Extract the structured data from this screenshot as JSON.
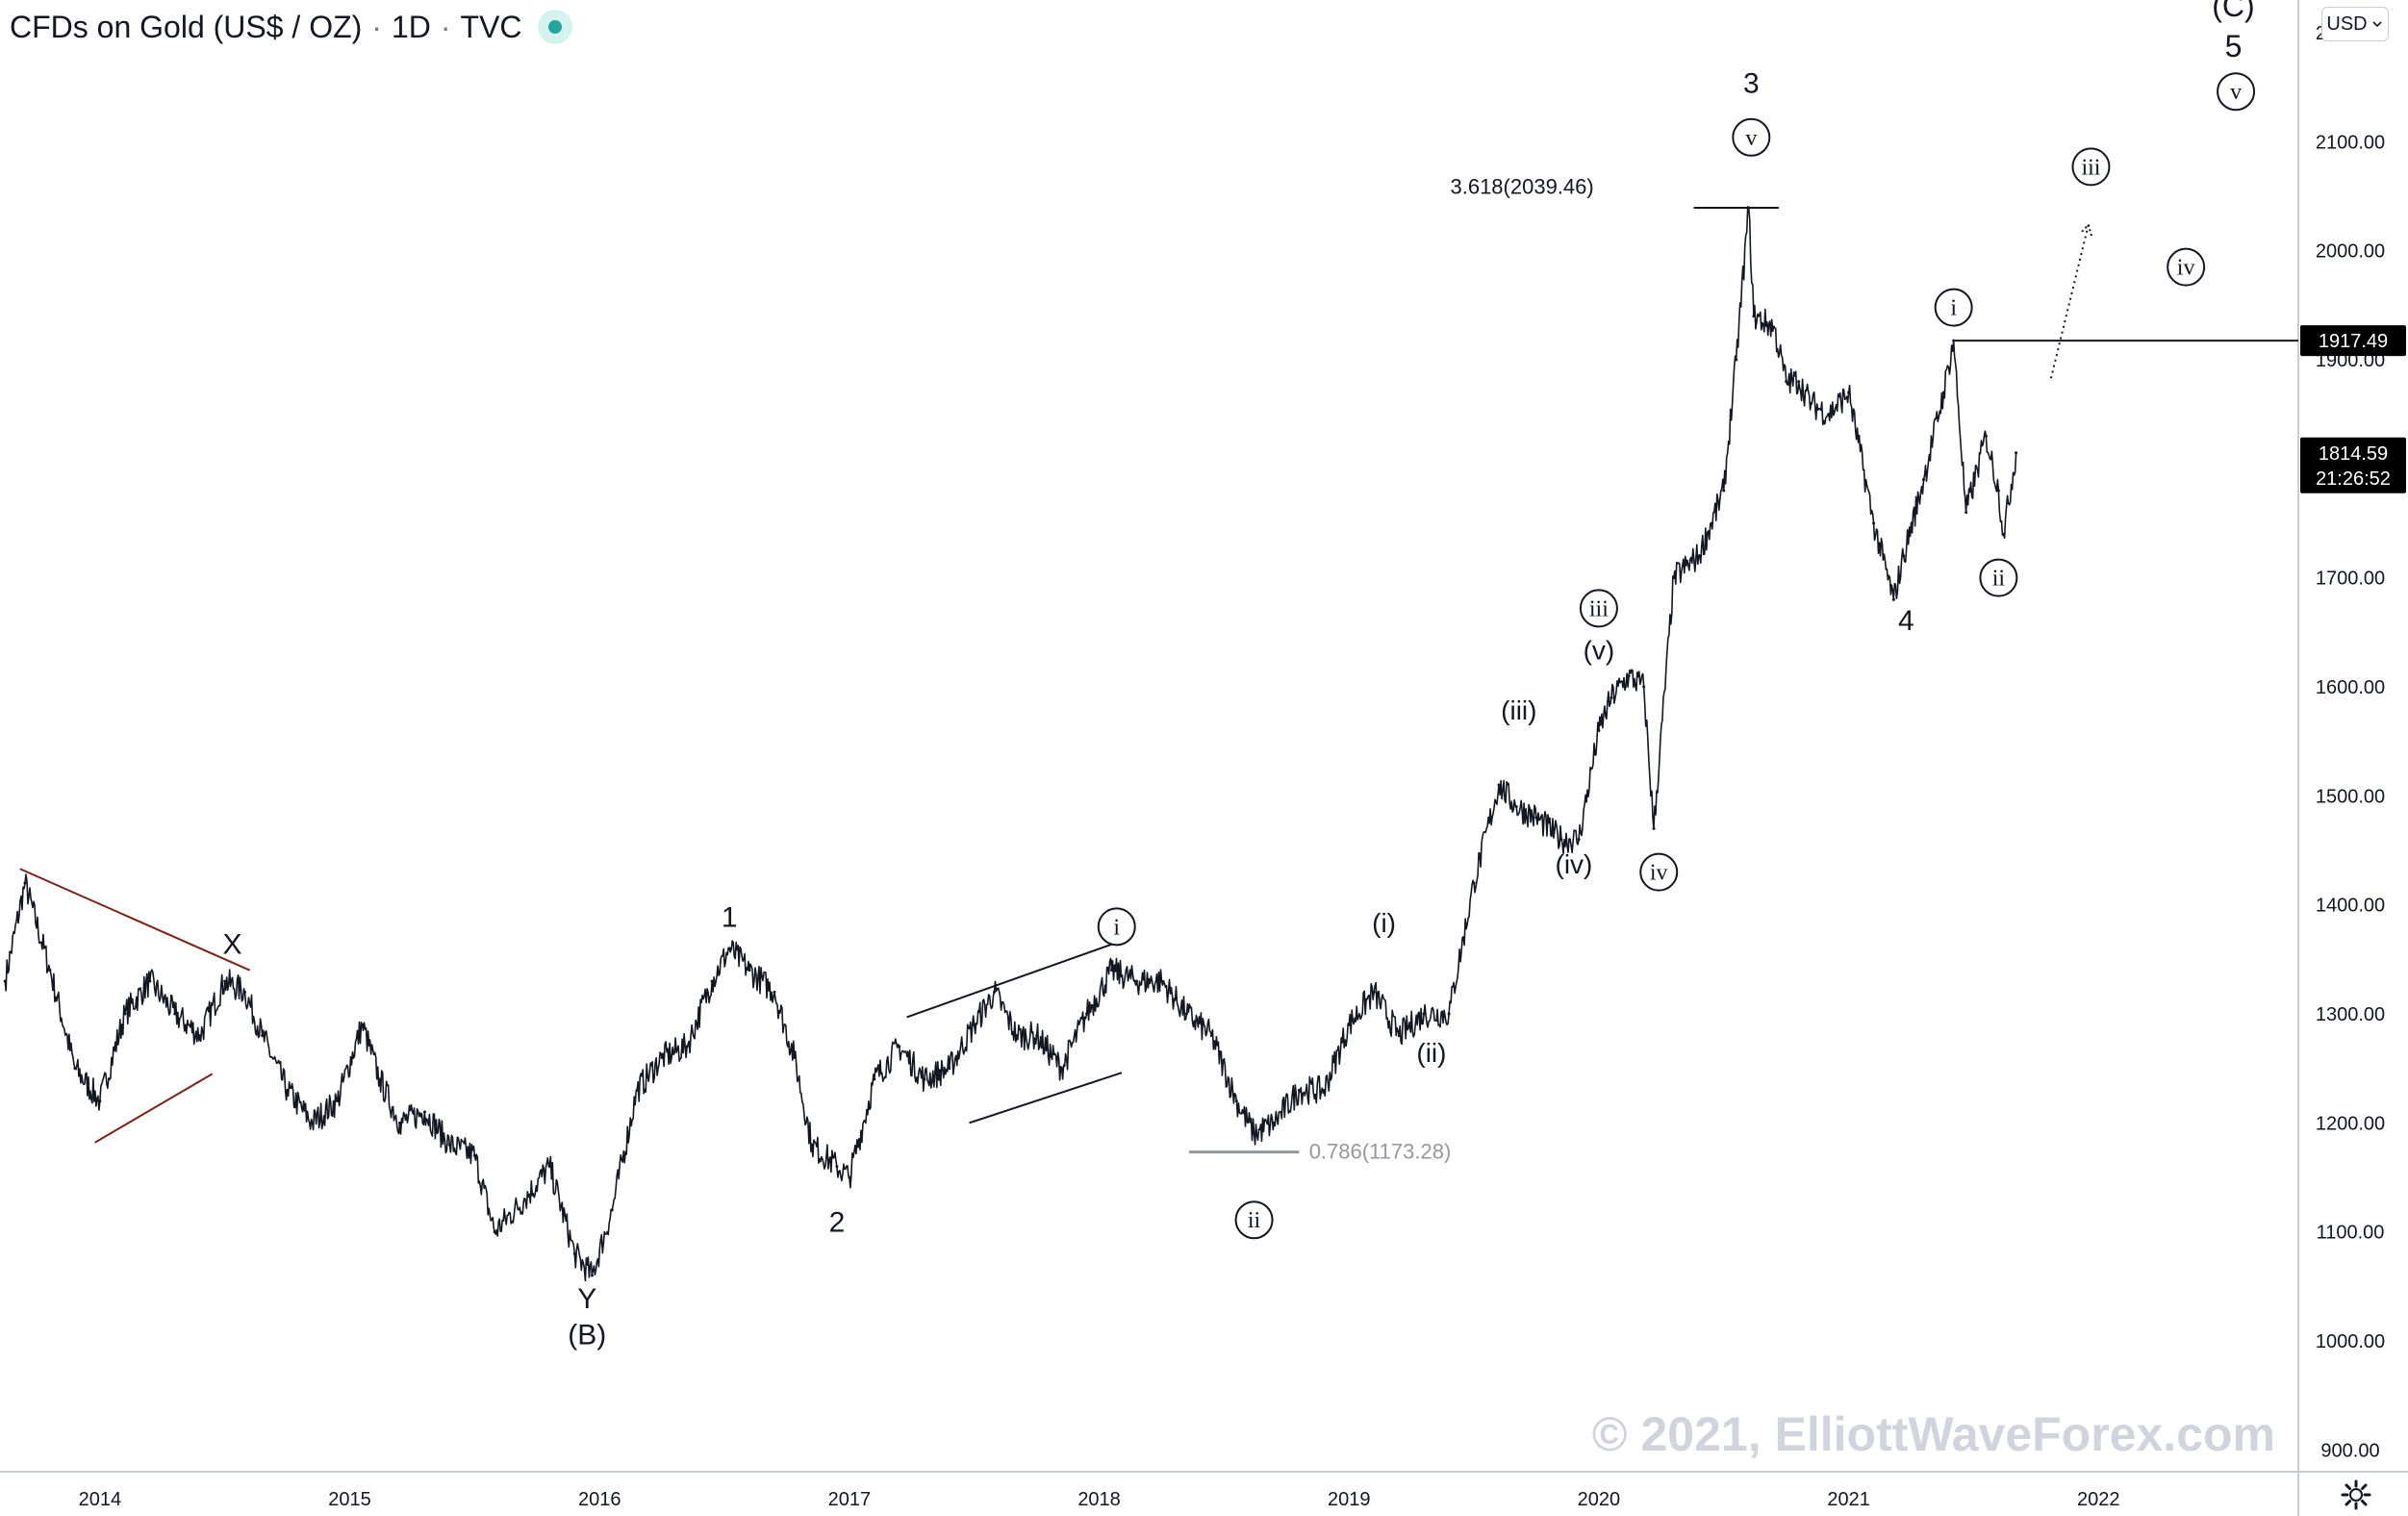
{
  "header": {
    "symbol": "CFDs on Gold (US$ / OZ)",
    "interval": "1D",
    "source": "TVC",
    "separator": "·"
  },
  "currency_button": {
    "label": "USD",
    "icon": "chevron-down-icon"
  },
  "watermark": "© 2021, ElliottWaveForex.com",
  "colors": {
    "price": "#131722",
    "triangle": "#7b2418",
    "fib_ret": "#9598a1",
    "axis_text": "#131722",
    "watermark": "#d1d4dc",
    "live_dot": "#26a69a",
    "tag_bg": "#000000"
  },
  "price_tags": [
    {
      "id": "level",
      "price": 1917.49,
      "lines": [
        "1917.49"
      ]
    },
    {
      "id": "last",
      "price": 1814.59,
      "lines": [
        "1814.59",
        "21:26:52"
      ]
    }
  ],
  "chart_data": {
    "type": "line",
    "title": "CFDs on Gold (US$ / OZ)",
    "x_axis": {
      "ticks": [
        "2014",
        "2015",
        "2016",
        "2017",
        "2018",
        "2019",
        "2020",
        "2021",
        "2022"
      ],
      "range": [
        2013.6,
        2022.8
      ]
    },
    "y_axis": {
      "ticks": [
        "900.00",
        "1000.00",
        "1100.00",
        "1200.00",
        "1300.00",
        "1400.00",
        "1500.00",
        "1600.00",
        "1700.00",
        "1800.00",
        "1900.00",
        "2000.00",
        "2100.00",
        "2200.00"
      ],
      "range": [
        880,
        2230
      ],
      "position": "right"
    },
    "grid": false,
    "series": [
      {
        "name": "",
        "x": [
          2013.62,
          2013.7,
          2013.8,
          2013.9,
          2014.0,
          2014.1,
          2014.2,
          2014.3,
          2014.4,
          2014.5,
          2014.58,
          2014.65,
          2014.75,
          2014.85,
          2014.95,
          2015.05,
          2015.12,
          2015.2,
          2015.3,
          2015.4,
          2015.5,
          2015.58,
          2015.7,
          2015.8,
          2015.9,
          2015.97,
          2016.05,
          2016.15,
          2016.25,
          2016.35,
          2016.45,
          2016.52,
          2016.6,
          2016.7,
          2016.78,
          2016.85,
          2016.95,
          2017.0,
          2017.1,
          2017.2,
          2017.3,
          2017.4,
          2017.5,
          2017.58,
          2017.67,
          2017.75,
          2017.85,
          2017.95,
          2018.05,
          2018.15,
          2018.25,
          2018.35,
          2018.45,
          2018.55,
          2018.62,
          2018.7,
          2018.8,
          2018.9,
          2019.0,
          2019.1,
          2019.2,
          2019.3,
          2019.4,
          2019.5,
          2019.6,
          2019.67,
          2019.75,
          2019.85,
          2019.92,
          2020.0,
          2020.05,
          2020.12,
          2020.18,
          2020.22,
          2020.3,
          2020.4,
          2020.5,
          2020.55,
          2020.6,
          2020.62,
          2020.7,
          2020.75,
          2020.8,
          2020.85,
          2020.92,
          2021.0,
          2021.1,
          2021.18,
          2021.22,
          2021.3,
          2021.38,
          2021.42,
          2021.47,
          2021.55,
          2021.6,
          2021.62,
          2021.67
        ],
        "y": [
          1330,
          1420,
          1340,
          1250,
          1220,
          1300,
          1330,
          1300,
          1280,
          1330,
          1320,
          1280,
          1230,
          1200,
          1220,
          1290,
          1240,
          1200,
          1210,
          1180,
          1170,
          1100,
          1130,
          1160,
          1080,
          1060,
          1120,
          1230,
          1260,
          1270,
          1330,
          1360,
          1340,
          1320,
          1260,
          1180,
          1160,
          1150,
          1240,
          1270,
          1240,
          1250,
          1290,
          1320,
          1280,
          1280,
          1250,
          1300,
          1340,
          1330,
          1330,
          1300,
          1280,
          1220,
          1190,
          1200,
          1230,
          1230,
          1290,
          1320,
          1280,
          1300,
          1300,
          1420,
          1510,
          1490,
          1480,
          1460,
          1460,
          1560,
          1590,
          1610,
          1600,
          1470,
          1700,
          1720,
          1780,
          1900,
          2039.46,
          1940,
          1930,
          1880,
          1880,
          1860,
          1850,
          1870,
          1750,
          1680,
          1720,
          1790,
          1870,
          1917.49,
          1760,
          1830,
          1780,
          1740,
          1814.59
        ]
      }
    ],
    "annotations": [
      {
        "text": "X",
        "x": 2014.53,
        "price": 1355,
        "size": 30
      },
      {
        "text": "1",
        "x": 2016.52,
        "price": 1380,
        "size": 30
      },
      {
        "text": "2",
        "x": 2016.95,
        "price": 1100,
        "size": 30
      },
      {
        "text": "Y",
        "x": 2015.95,
        "price": 1030,
        "size": 30
      },
      {
        "text": "(B)",
        "x": 2015.95,
        "price": 997,
        "size": 30
      },
      {
        "text": "(i)",
        "x": 2019.14,
        "price": 1375,
        "size": 28
      },
      {
        "text": "(ii)",
        "x": 2019.33,
        "price": 1256,
        "size": 28
      },
      {
        "text": "(iii)",
        "x": 2019.68,
        "price": 1570,
        "size": 28
      },
      {
        "text": "(iv)",
        "x": 2019.9,
        "price": 1429,
        "size": 28
      },
      {
        "text": "(v)",
        "x": 2020.0,
        "price": 1625,
        "size": 28
      },
      {
        "text": "3",
        "x": 2020.61,
        "price": 2145,
        "size": 30
      },
      {
        "text": "4",
        "x": 2021.23,
        "price": 1652,
        "size": 30
      },
      {
        "text": "(C)",
        "x": 2022.54,
        "price": 2215,
        "size": 32
      },
      {
        "text": "5",
        "x": 2022.54,
        "price": 2178,
        "size": 32
      },
      {
        "text": "3.618(2039.46)",
        "x": 2019.98,
        "price": 2052,
        "size": 22,
        "anchor": "end"
      },
      {
        "text": "0.786(1173.28)",
        "x": 2018.84,
        "price": 1167,
        "size": 22,
        "anchor": "start",
        "color": "fib_ret"
      }
    ],
    "circled_labels": [
      {
        "text": "i",
        "x": 2018.07,
        "price": 1380
      },
      {
        "text": "ii",
        "x": 2018.62,
        "price": 1111
      },
      {
        "text": "iii",
        "x": 2020.0,
        "price": 1672
      },
      {
        "text": "iv",
        "x": 2020.24,
        "price": 1430
      },
      {
        "text": "v",
        "x": 2020.61,
        "price": 2104
      },
      {
        "text": "i",
        "x": 2021.42,
        "price": 1948
      },
      {
        "text": "ii",
        "x": 2021.6,
        "price": 1700
      },
      {
        "text": "iii",
        "x": 2021.97,
        "price": 2077
      },
      {
        "text": "iv",
        "x": 2022.35,
        "price": 1985
      },
      {
        "text": "v",
        "x": 2022.55,
        "price": 2146
      }
    ],
    "trendlines": [
      {
        "name": "triangle-upper",
        "x1": 2013.68,
        "y1": 1433,
        "x2": 2014.6,
        "y2": 1340,
        "color": "triangle"
      },
      {
        "name": "triangle-lower",
        "x1": 2013.98,
        "y1": 1182,
        "x2": 2014.45,
        "y2": 1245,
        "color": "triangle"
      },
      {
        "name": "channel-upper",
        "x1": 2017.23,
        "y1": 1297,
        "x2": 2018.09,
        "y2": 1367
      },
      {
        "name": "channel-lower",
        "x1": 2017.48,
        "y1": 1200,
        "x2": 2018.09,
        "y2": 1246
      },
      {
        "name": "fib-extension-line",
        "x1": 2020.38,
        "y1": 2039.46,
        "x2": 2020.72,
        "y2": 2039.46
      },
      {
        "name": "fib-retracement-line",
        "x1": 2018.36,
        "y1": 1173.28,
        "x2": 2018.8,
        "y2": 1173.28,
        "color": "fib_ret",
        "width": 3
      },
      {
        "name": "resistance-line",
        "x1": 2021.42,
        "y1": 1917.49,
        "x2": 2022.8,
        "y2": 1917.49
      }
    ],
    "projection": {
      "x1": 2021.81,
      "y1": 1883,
      "x2": 2021.96,
      "y2": 2024
    }
  }
}
